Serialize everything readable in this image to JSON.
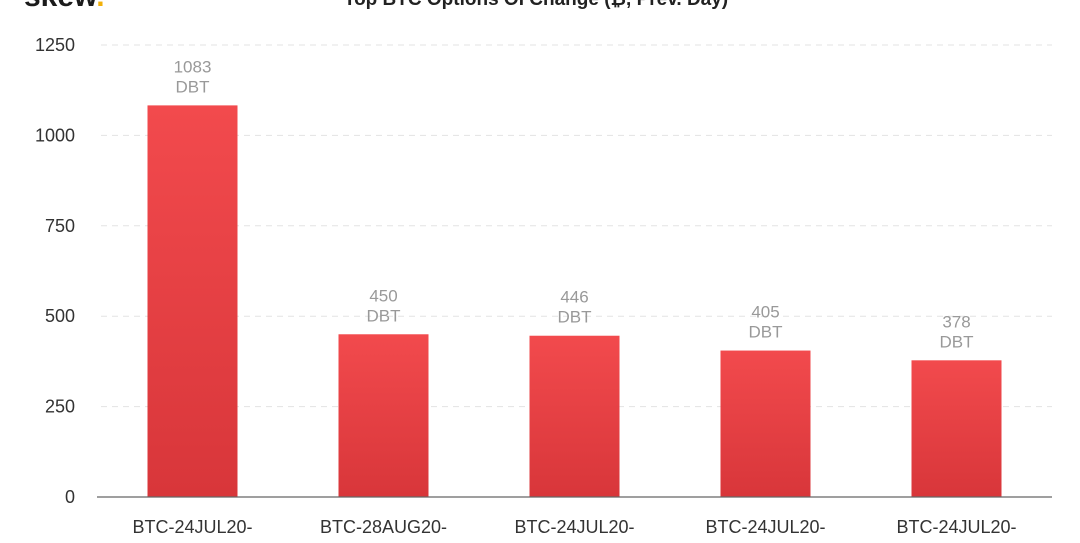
{
  "brand": {
    "name": "skew",
    "dot": ".",
    "dot_color": "#f2b10a"
  },
  "chart_data": {
    "type": "bar",
    "title": "Top BTC Options OI Change (₿, Prev. Day)",
    "categories": [
      "BTC-24JUL20-",
      "BTC-28AUG20-",
      "BTC-24JUL20-",
      "BTC-24JUL20-",
      "BTC-24JUL20-"
    ],
    "series": [
      {
        "values": [
          1083,
          450,
          446,
          405,
          378
        ],
        "unit_label": "DBT",
        "color_top": "#f24a4d",
        "color_bottom": "#d8363a"
      }
    ],
    "ylim": [
      0,
      1250
    ],
    "yticks": [
      0,
      250,
      500,
      750,
      1000,
      1250
    ],
    "xlabel": "",
    "ylabel": "",
    "grid": true,
    "data_labels": true
  }
}
